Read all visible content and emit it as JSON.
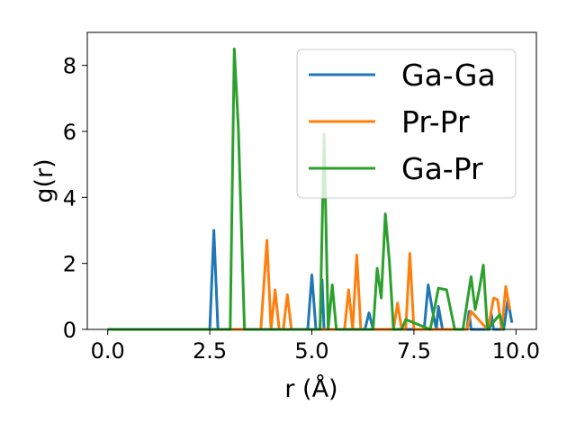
{
  "chart_data": {
    "type": "line",
    "xlabel": "r (Å)",
    "ylabel": "g(r)",
    "xlim": [
      -0.5,
      10.5
    ],
    "ylim": [
      0,
      9
    ],
    "xticks": [
      0.0,
      2.5,
      5.0,
      7.5,
      10.0
    ],
    "xtick_labels": [
      "0.0",
      "2.5",
      "5.0",
      "7.5",
      "10.0"
    ],
    "yticks": [
      0,
      2,
      4,
      6,
      8
    ],
    "ytick_labels": [
      "0",
      "2",
      "4",
      "6",
      "8"
    ],
    "grid": false,
    "legend_position": "top-right",
    "series": [
      {
        "name": "Ga-Ga",
        "color": "#1f77b4",
        "x": [
          0.0,
          2.5,
          2.6,
          2.7,
          4.9,
          5.0,
          5.1,
          5.2,
          5.25,
          5.3,
          6.3,
          6.4,
          6.5,
          7.75,
          7.85,
          7.95,
          8.05,
          8.1,
          8.2,
          8.8,
          8.85,
          8.9,
          9.35,
          9.4,
          9.45,
          9.7,
          9.8,
          9.9
        ],
        "y": [
          0.0,
          0.0,
          3.0,
          0.0,
          0.0,
          1.65,
          0.0,
          0.0,
          1.5,
          0.0,
          0.0,
          0.5,
          0.0,
          0.0,
          1.35,
          0.6,
          0.0,
          0.7,
          0.0,
          0.0,
          0.55,
          0.0,
          0.0,
          0.45,
          0.0,
          0.0,
          0.9,
          0.2
        ]
      },
      {
        "name": "Pr-Pr",
        "color": "#ff7f0e",
        "x": [
          0.0,
          3.75,
          3.9,
          4.0,
          4.1,
          4.2,
          4.3,
          4.4,
          4.5,
          5.8,
          5.9,
          6.0,
          6.1,
          6.2,
          7.0,
          7.1,
          7.2,
          7.3,
          7.4,
          7.5,
          8.8,
          8.9,
          9.3,
          9.35,
          9.45,
          9.55,
          9.65,
          9.75,
          9.85
        ],
        "y": [
          0.0,
          0.0,
          2.7,
          0.0,
          1.2,
          0.0,
          0.0,
          1.05,
          0.0,
          0.0,
          1.2,
          0.0,
          2.25,
          0.0,
          0.0,
          0.8,
          0.0,
          0.0,
          2.3,
          0.0,
          0.0,
          0.55,
          0.0,
          0.25,
          0.95,
          0.9,
          0.0,
          1.3,
          0.6
        ]
      },
      {
        "name": "Ga-Pr",
        "color": "#2ca02c",
        "x": [
          0.0,
          3.0,
          3.1,
          3.2,
          3.35,
          5.2,
          5.3,
          5.4,
          5.5,
          5.6,
          6.5,
          6.6,
          6.7,
          6.8,
          6.9,
          7.0,
          7.2,
          7.3,
          7.9,
          8.0,
          8.1,
          8.3,
          8.5,
          8.7,
          8.9,
          9.0,
          9.1,
          9.2,
          9.3,
          9.6,
          9.7
        ],
        "y": [
          0.0,
          0.0,
          8.5,
          6.1,
          0.0,
          0.0,
          5.9,
          0.0,
          1.35,
          0.0,
          0.0,
          1.85,
          0.95,
          3.5,
          2.05,
          0.0,
          0.0,
          0.3,
          0.0,
          0.6,
          1.25,
          1.2,
          0.0,
          0.0,
          1.6,
          0.6,
          1.2,
          1.95,
          0.0,
          0.45,
          0.0
        ]
      }
    ]
  }
}
